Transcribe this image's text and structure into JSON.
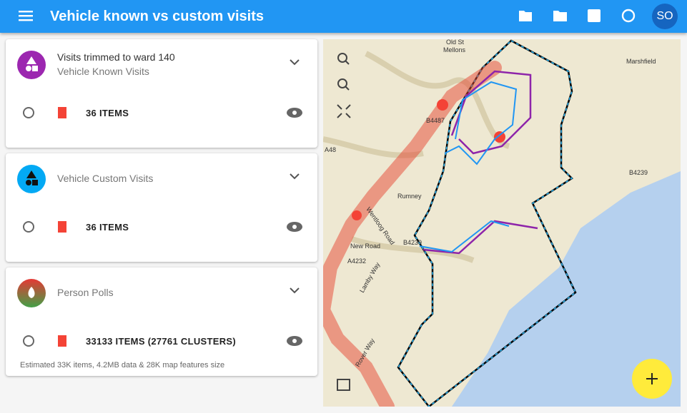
{
  "header": {
    "title": "Vehicle known vs custom visits",
    "avatar": "SO"
  },
  "layers": [
    {
      "title": "Visits trimmed to ward 140",
      "subtitle": "Vehicle Known Visits",
      "count": "36 ITEMS"
    },
    {
      "subtitle": "Vehicle Custom Visits",
      "count": "36 ITEMS"
    },
    {
      "subtitle": "Person Polls",
      "count": "33133 ITEMS (27761 CLUSTERS)",
      "note": "Estimated 33K items, 4.2MB data & 28K map features size"
    }
  ],
  "map": {
    "labels": [
      "Old St",
      "Mellons",
      "Marshfield",
      "Rumney",
      "New Road",
      "B4239",
      "B4239",
      "A48",
      "A4232",
      "Lamby Way",
      "Rover Way",
      "Wentloog Road",
      "B4487"
    ]
  }
}
